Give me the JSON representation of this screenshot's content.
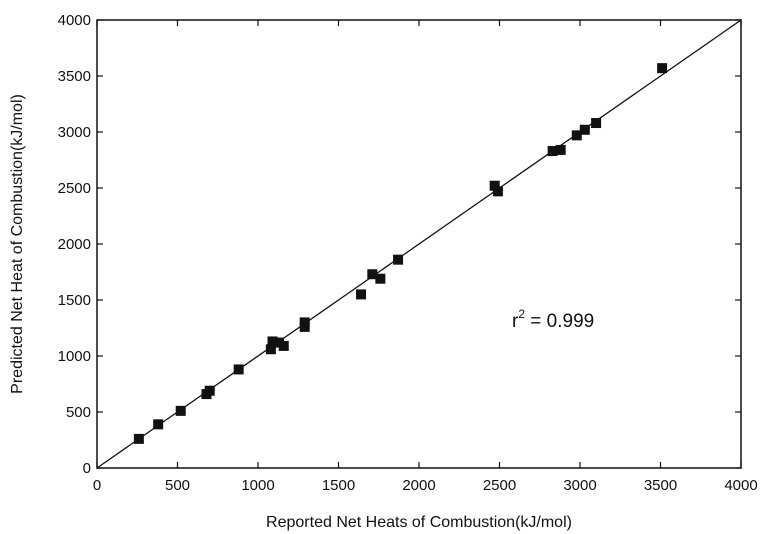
{
  "chart_data": {
    "type": "scatter",
    "xlabel": "Reported Net Heats of Combustion(kJ/mol)",
    "ylabel": "Predicted Net Heat of Combustion(kJ/mol)",
    "xlim": [
      0,
      4000
    ],
    "ylim": [
      0,
      4000
    ],
    "x_ticks": [
      0,
      500,
      1000,
      1500,
      2000,
      2500,
      3000,
      3500,
      4000
    ],
    "y_ticks": [
      0,
      500,
      1000,
      1500,
      2000,
      2500,
      3000,
      3500,
      4000
    ],
    "grid": false,
    "legend": "none",
    "marker": "square",
    "marker_color": "#111111",
    "fit_line": {
      "x": [
        0,
        4000
      ],
      "y": [
        0,
        4000
      ]
    },
    "annotation": {
      "base": "r",
      "sup": "2",
      "text": " = 0.999"
    },
    "points": [
      {
        "x": 260,
        "y": 260
      },
      {
        "x": 380,
        "y": 390
      },
      {
        "x": 520,
        "y": 510
      },
      {
        "x": 680,
        "y": 660
      },
      {
        "x": 700,
        "y": 690
      },
      {
        "x": 880,
        "y": 880
      },
      {
        "x": 1080,
        "y": 1060
      },
      {
        "x": 1090,
        "y": 1130
      },
      {
        "x": 1130,
        "y": 1120
      },
      {
        "x": 1160,
        "y": 1090
      },
      {
        "x": 1290,
        "y": 1260
      },
      {
        "x": 1290,
        "y": 1300
      },
      {
        "x": 1640,
        "y": 1550
      },
      {
        "x": 1710,
        "y": 1730
      },
      {
        "x": 1760,
        "y": 1690
      },
      {
        "x": 1870,
        "y": 1860
      },
      {
        "x": 2470,
        "y": 2520
      },
      {
        "x": 2490,
        "y": 2470
      },
      {
        "x": 2830,
        "y": 2830
      },
      {
        "x": 2880,
        "y": 2840
      },
      {
        "x": 2980,
        "y": 2970
      },
      {
        "x": 3030,
        "y": 3020
      },
      {
        "x": 3100,
        "y": 3080
      },
      {
        "x": 3510,
        "y": 3570
      }
    ]
  }
}
